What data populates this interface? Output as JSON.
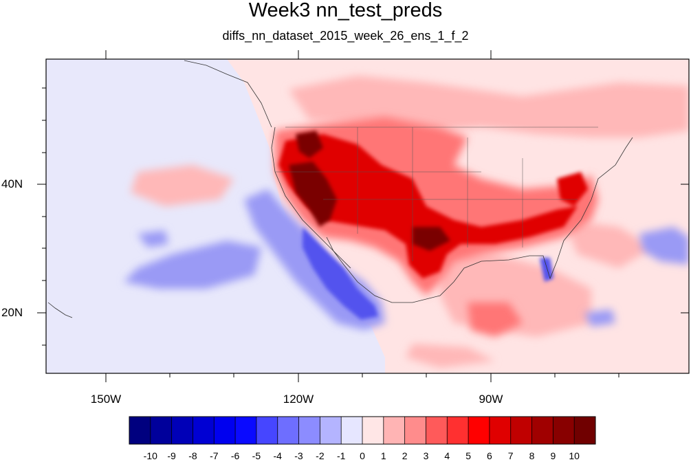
{
  "title": "Week3 nn_test_preds",
  "subtitle": "diffs_nn_dataset_2015_week_26_ens_1_f_2",
  "axes": {
    "lon_labels": [
      "150W",
      "120W",
      "90W"
    ],
    "lat_labels": [
      "40N",
      "20N"
    ]
  },
  "colorbar": {
    "labels": [
      "-10",
      "-9",
      "-8",
      "-7",
      "-6",
      "-5",
      "-4",
      "-3",
      "-2",
      "-1",
      "0",
      "1",
      "2",
      "3",
      "4",
      "5",
      "6",
      "7",
      "8",
      "9",
      "10"
    ],
    "colors": [
      "#00007f",
      "#00009b",
      "#0000b7",
      "#0000d3",
      "#0000ef",
      "#0a0aff",
      "#4646ff",
      "#6e6eff",
      "#8c8cff",
      "#b4b4ff",
      "#e6e6ff",
      "#ffe6e6",
      "#ffb4b4",
      "#ff8c8c",
      "#ff5a5a",
      "#ff3030",
      "#ff0000",
      "#e00000",
      "#c00000",
      "#a00000",
      "#880000",
      "#700000"
    ]
  },
  "colors": {
    "ocean": "#e8e8fb",
    "land_background": "#ffe4e4",
    "frame": "#000000"
  }
}
